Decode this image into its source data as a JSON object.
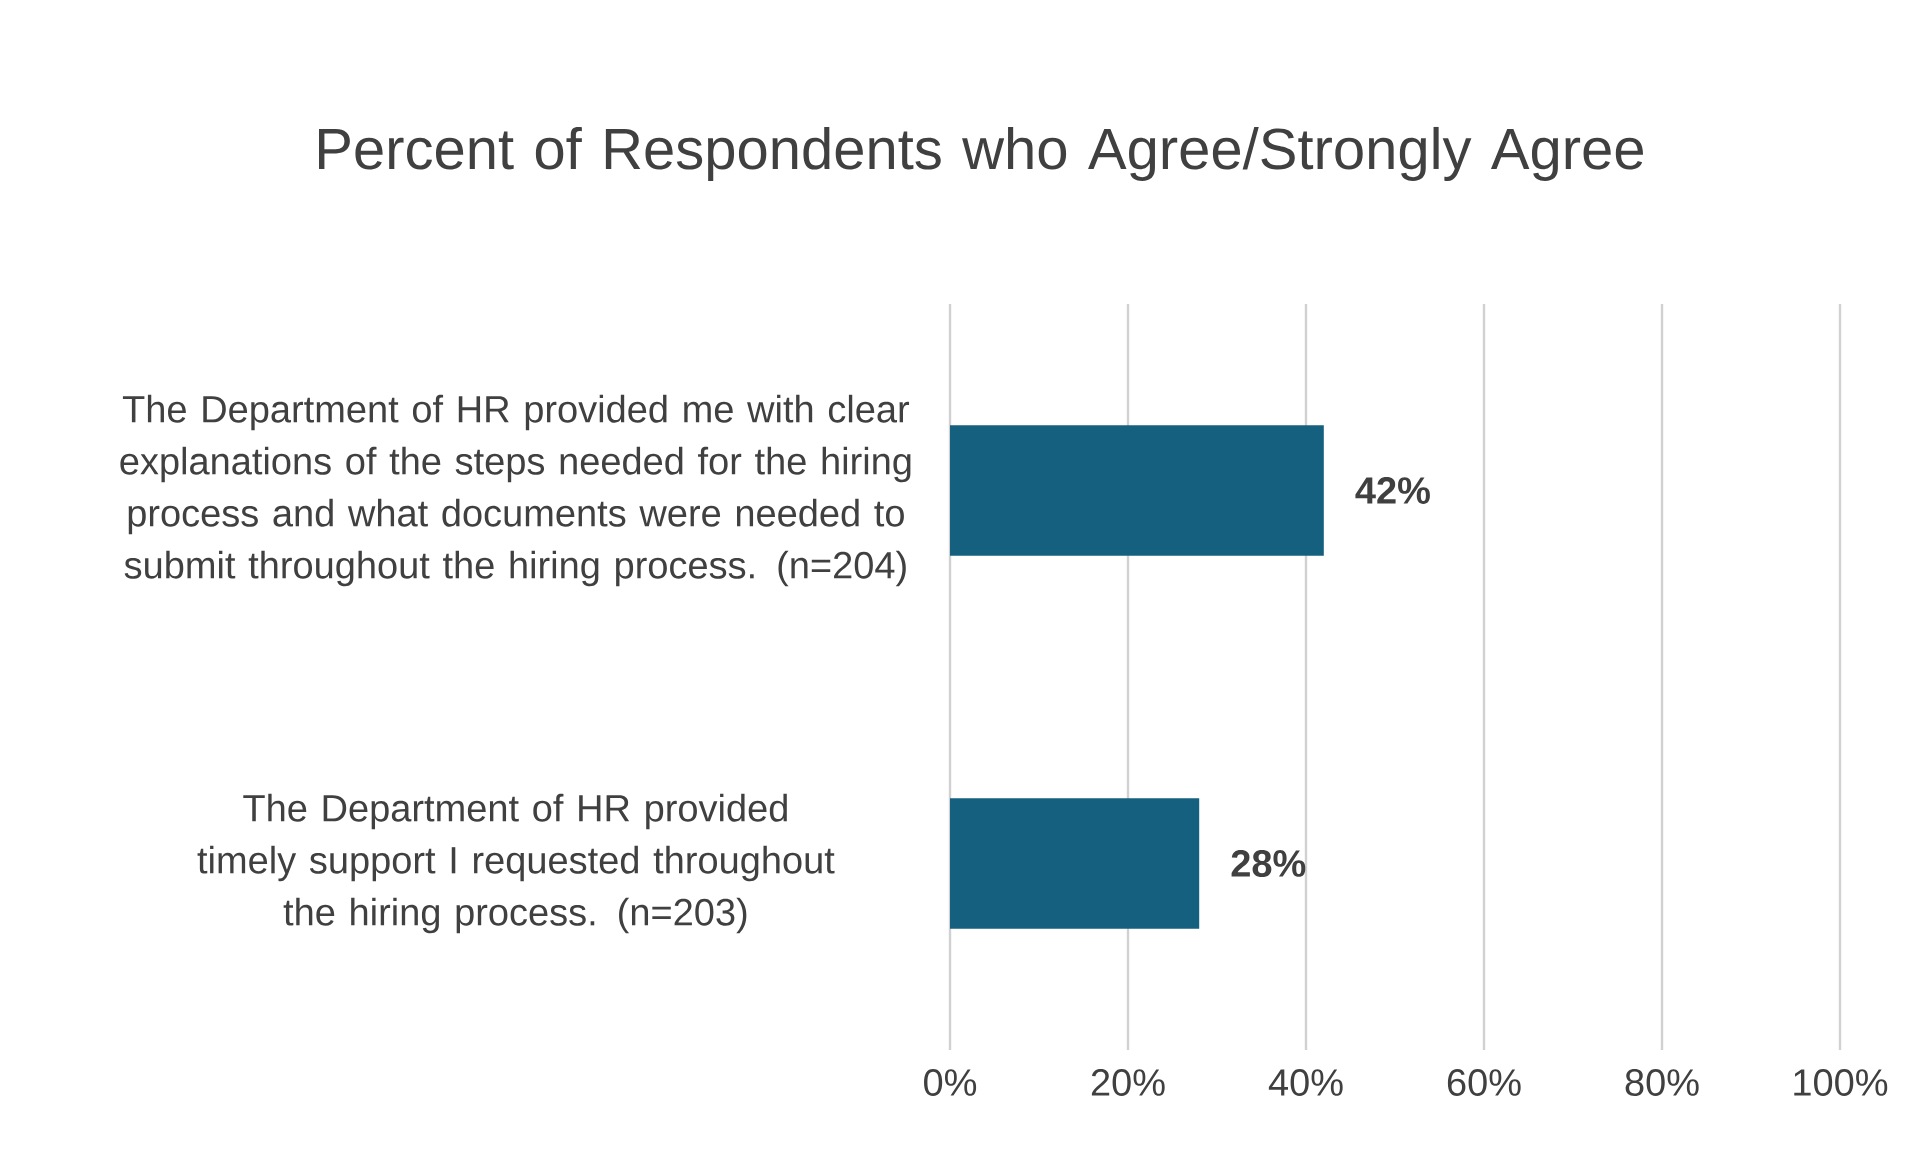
{
  "chart_data": {
    "type": "bar",
    "orientation": "horizontal",
    "title": "Percent of Respondents who Agree/Strongly Agree",
    "categories": [
      "The Department of HR provided me with clear explanations of the steps needed for the hiring process and what documents were needed to submit throughout the hiring process. (n=204)",
      "The Department of HR provided timely support I requested throughout the hiring process. (n=203)"
    ],
    "values": [
      42,
      28
    ],
    "value_labels": [
      "42%",
      "28%"
    ],
    "color": "#155f7f",
    "xlim": [
      0,
      100
    ],
    "xticks": [
      {
        "value": 0,
        "label": "0%"
      },
      {
        "value": 20,
        "label": "20%"
      },
      {
        "value": 40,
        "label": "40%"
      },
      {
        "value": 60,
        "label": "60%"
      },
      {
        "value": 80,
        "label": "80%"
      },
      {
        "value": 100,
        "label": "100%"
      }
    ],
    "grid": "x"
  }
}
